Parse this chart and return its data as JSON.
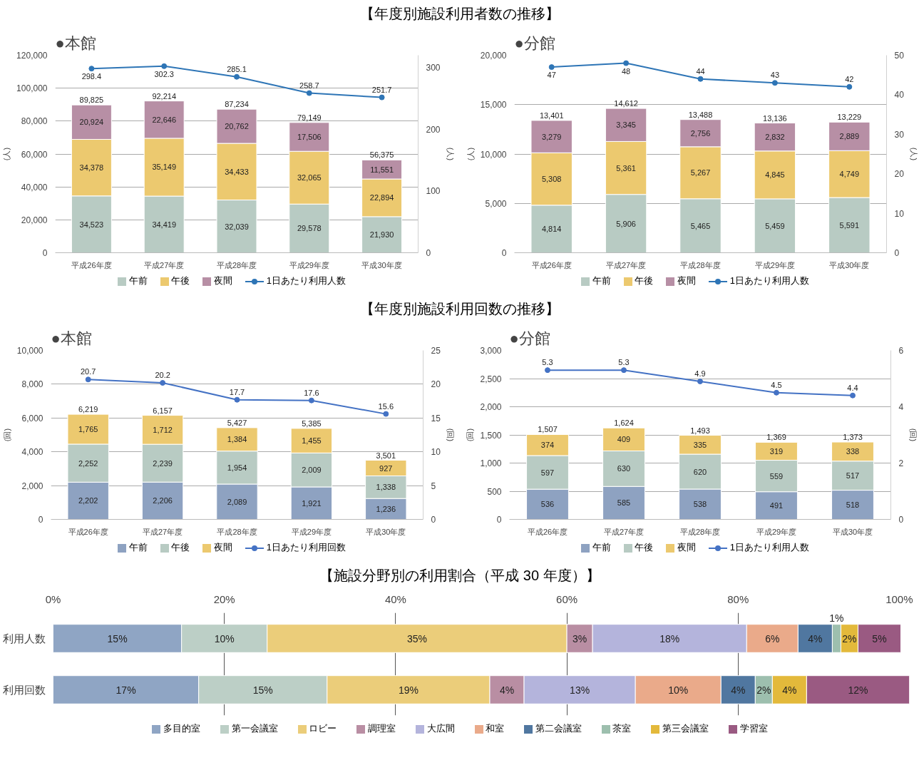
{
  "chart_data": [
    {
      "type": "bar",
      "stacked": true,
      "title": "●本館",
      "annotations": [
        "【年度別施設利用者数の推移】"
      ],
      "ylabel": "(人)",
      "y2label": "(人)",
      "categories": [
        "平成26年度",
        "平成27年度",
        "平成28年度",
        "平成29年度",
        "平成30年度"
      ],
      "ylim": [
        0,
        120000
      ],
      "yticks": [
        0,
        {
          "value": 20000,
          "label": "20,000"
        },
        {
          "value": 40000,
          "label": "40,000"
        },
        {
          "value": 60000,
          "label": "60,000"
        },
        {
          "value": 80000,
          "label": "80,000"
        },
        {
          "value": 100000,
          "label": "100,000"
        },
        {
          "value": 120000,
          "label": "120,000"
        }
      ],
      "y2lim": [
        0,
        320
      ],
      "y2ticks": [
        0,
        100,
        200,
        300
      ],
      "grid": "y",
      "legend": "bottom",
      "data_labels": true,
      "marker": "circle",
      "line_style": "solid",
      "totals": [
        "89,825",
        "92,214",
        "87,234",
        "79,149",
        "56,375"
      ],
      "series": [
        {
          "name": "午前",
          "color": "#b8cbc3",
          "values": [
            34523,
            34419,
            32039,
            29578,
            21930
          ],
          "value_labels": [
            "34,523",
            "34,419",
            "32,039",
            "29,578",
            "21,930"
          ]
        },
        {
          "name": "午後",
          "color": "#ecc96f",
          "values": [
            34378,
            35149,
            34433,
            32065,
            22894
          ],
          "value_labels": [
            "34,378",
            "35,149",
            "34,433",
            "32,065",
            "22,894"
          ]
        },
        {
          "name": "夜間",
          "color": "#b78fa5",
          "values": [
            20924,
            22646,
            20762,
            17506,
            11551
          ],
          "value_labels": [
            "20,924",
            "22,646",
            "20,762",
            "17,506",
            "11,551"
          ]
        },
        {
          "name": "1日あたり利用人数",
          "type": "line",
          "axis": "y2",
          "color": "#2e75b6",
          "values": [
            298.4,
            302.3,
            285.1,
            258.7,
            251.7
          ]
        }
      ]
    },
    {
      "type": "bar",
      "stacked": true,
      "title": "●分館",
      "ylabel": "(人)",
      "y2label": "(人)",
      "categories": [
        "平成26年度",
        "平成27年度",
        "平成28年度",
        "平成29年度",
        "平成30年度"
      ],
      "ylim": [
        0,
        20000
      ],
      "yticks": [
        0,
        {
          "value": 5000,
          "label": "5,000"
        },
        {
          "value": 10000,
          "label": "10,000"
        },
        {
          "value": 15000,
          "label": "15,000"
        },
        {
          "value": 20000,
          "label": "20,000"
        }
      ],
      "y2lim": [
        0,
        50
      ],
      "y2ticks": [
        0,
        10,
        20,
        30,
        40,
        50
      ],
      "grid": "y",
      "legend": "bottom",
      "data_labels": true,
      "marker": "circle",
      "line_style": "solid",
      "totals": [
        "13,401",
        "14,612",
        "13,488",
        "13,136",
        "13,229"
      ],
      "series": [
        {
          "name": "午前",
          "color": "#b8cbc3",
          "values": [
            4814,
            5906,
            5465,
            5459,
            5591
          ],
          "value_labels": [
            "4,814",
            "5,906",
            "5,465",
            "5,459",
            "5,591"
          ]
        },
        {
          "name": "午後",
          "color": "#ecc96f",
          "values": [
            5308,
            5361,
            5267,
            4845,
            4749
          ],
          "value_labels": [
            "5,308",
            "5,361",
            "5,267",
            "4,845",
            "4,749"
          ]
        },
        {
          "name": "夜間",
          "color": "#b78fa5",
          "values": [
            3279,
            3345,
            2756,
            2832,
            2889
          ],
          "value_labels": [
            "3,279",
            "3,345",
            "2,756",
            "2,832",
            "2,889"
          ]
        },
        {
          "name": "1日あたり利用人数",
          "type": "line",
          "axis": "y2",
          "color": "#2e75b6",
          "values": [
            47,
            48,
            44,
            43,
            42
          ]
        }
      ]
    },
    {
      "type": "bar",
      "stacked": true,
      "title": "●本館",
      "annotations": [
        "【年度別施設利用回数の推移】"
      ],
      "ylabel": "(回)",
      "y2label": "(回)",
      "categories": [
        "平成26年度",
        "平成27年度",
        "平成28年度",
        "平成29年度",
        "平成30年度"
      ],
      "ylim": [
        0,
        10000
      ],
      "yticks": [
        0,
        {
          "value": 2000,
          "label": "2,000"
        },
        {
          "value": 4000,
          "label": "4,000"
        },
        {
          "value": 6000,
          "label": "6,000"
        },
        {
          "value": 8000,
          "label": "8,000"
        },
        {
          "value": 10000,
          "label": "10,000"
        }
      ],
      "y2lim": [
        0,
        25
      ],
      "y2ticks": [
        0,
        5,
        10,
        15,
        20,
        25
      ],
      "grid": "y",
      "legend": "bottom",
      "data_labels": true,
      "marker": "circle",
      "line_style": "solid",
      "totals": [
        "6,219",
        "6,157",
        "5,427",
        "5,385",
        "3,501"
      ],
      "series": [
        {
          "name": "午前",
          "color": "#8ea2c1",
          "values": [
            2202,
            2206,
            2089,
            1921,
            1236
          ],
          "value_labels": [
            "2,202",
            "2,206",
            "2,089",
            "1,921",
            "1,236"
          ]
        },
        {
          "name": "午後",
          "color": "#b8cbc3",
          "values": [
            2252,
            2239,
            1954,
            2009,
            1338
          ],
          "value_labels": [
            "2,252",
            "2,239",
            "1,954",
            "2,009",
            "1,338"
          ]
        },
        {
          "name": "夜間",
          "color": "#ecc96f",
          "values": [
            1765,
            1712,
            1384,
            1455,
            927
          ],
          "value_labels": [
            "1,765",
            "1,712",
            "1,384",
            "1,455",
            "927"
          ]
        },
        {
          "name": "1日あたり利用回数",
          "type": "line",
          "axis": "y2",
          "color": "#4472c4",
          "values": [
            20.7,
            20.2,
            17.7,
            17.6,
            15.6
          ]
        }
      ]
    },
    {
      "type": "bar",
      "stacked": true,
      "title": "●分館",
      "ylabel": "(回)",
      "y2label": "(回)",
      "categories": [
        "平成26年度",
        "平成27年度",
        "平成28年度",
        "平成29年度",
        "平成30年度"
      ],
      "ylim": [
        0,
        3000
      ],
      "yticks": [
        0,
        500,
        {
          "value": 1000,
          "label": "1,000"
        },
        {
          "value": 1500,
          "label": "1,500"
        },
        {
          "value": 2000,
          "label": "2,000"
        },
        {
          "value": 2500,
          "label": "2,500"
        },
        {
          "value": 3000,
          "label": "3,000"
        }
      ],
      "y2lim": [
        0,
        6
      ],
      "y2ticks": [
        0,
        2,
        4,
        6
      ],
      "grid": "y",
      "legend": "bottom",
      "data_labels": true,
      "marker": "circle",
      "line_style": "solid",
      "totals": [
        "1,507",
        "1,624",
        "1,493",
        "1,369",
        "1,373"
      ],
      "series": [
        {
          "name": "午前",
          "color": "#8ea2c1",
          "values": [
            536,
            585,
            538,
            491,
            518
          ]
        },
        {
          "name": "午後",
          "color": "#b8cbc3",
          "values": [
            597,
            630,
            620,
            559,
            517
          ]
        },
        {
          "name": "夜間",
          "color": "#ecc96f",
          "values": [
            374,
            409,
            335,
            319,
            338
          ]
        },
        {
          "name": "1日あたり利用人数",
          "type": "line",
          "axis": "y2",
          "color": "#4472c4",
          "values": [
            5.3,
            5.3,
            4.9,
            4.5,
            4.4
          ]
        }
      ]
    },
    {
      "type": "bar",
      "stacked": true,
      "orientation": "horizontal",
      "annotations": [
        "【施設分野別の利用割合（平成 30 年度）】"
      ],
      "categories": [
        "利用人数",
        "利用回数"
      ],
      "xlim": [
        0,
        100
      ],
      "xticks": [
        {
          "value": 0,
          "label": "0%"
        },
        {
          "value": 20,
          "label": "20%"
        },
        {
          "value": 40,
          "label": "40%"
        },
        {
          "value": 60,
          "label": "60%"
        },
        {
          "value": 80,
          "label": "80%"
        },
        {
          "value": 100,
          "label": "100%"
        }
      ],
      "grid": "x",
      "legend": "bottom",
      "series": [
        {
          "name": "多目的室",
          "color": "#8fa5c4",
          "values": [
            15,
            17
          ],
          "value_labels": [
            "15%",
            "17%"
          ]
        },
        {
          "name": "第一会議室",
          "color": "#bccfc6",
          "values": [
            10,
            15
          ],
          "value_labels": [
            "10%",
            "15%"
          ]
        },
        {
          "name": "ロビー",
          "color": "#ebcd7a",
          "values": [
            35,
            19
          ],
          "value_labels": [
            "35%",
            "19%"
          ]
        },
        {
          "name": "調理室",
          "color": "#b98ea3",
          "values": [
            3,
            4
          ],
          "value_labels": [
            "3%",
            "4%"
          ]
        },
        {
          "name": "大広間",
          "color": "#b4b4dc",
          "values": [
            18,
            13
          ],
          "value_labels": [
            "18%",
            "13%"
          ]
        },
        {
          "name": "和室",
          "color": "#eaaa8a",
          "values": [
            6,
            10
          ],
          "value_labels": [
            "6%",
            "10%"
          ]
        },
        {
          "name": "第二会議室",
          "color": "#5077a0",
          "values": [
            4,
            4
          ],
          "value_labels": [
            "4%",
            "4%"
          ]
        },
        {
          "name": "茶室",
          "color": "#9dbfae",
          "values": [
            1,
            2
          ],
          "value_labels": [
            "1%",
            "2%"
          ]
        },
        {
          "name": "第三会議室",
          "color": "#e3b93b",
          "values": [
            2,
            4
          ],
          "value_labels": [
            "2%",
            "4%"
          ]
        },
        {
          "name": "学習室",
          "color": "#9a5a82",
          "values": [
            5,
            12
          ],
          "value_labels": [
            "5%",
            "12%"
          ]
        }
      ]
    }
  ]
}
